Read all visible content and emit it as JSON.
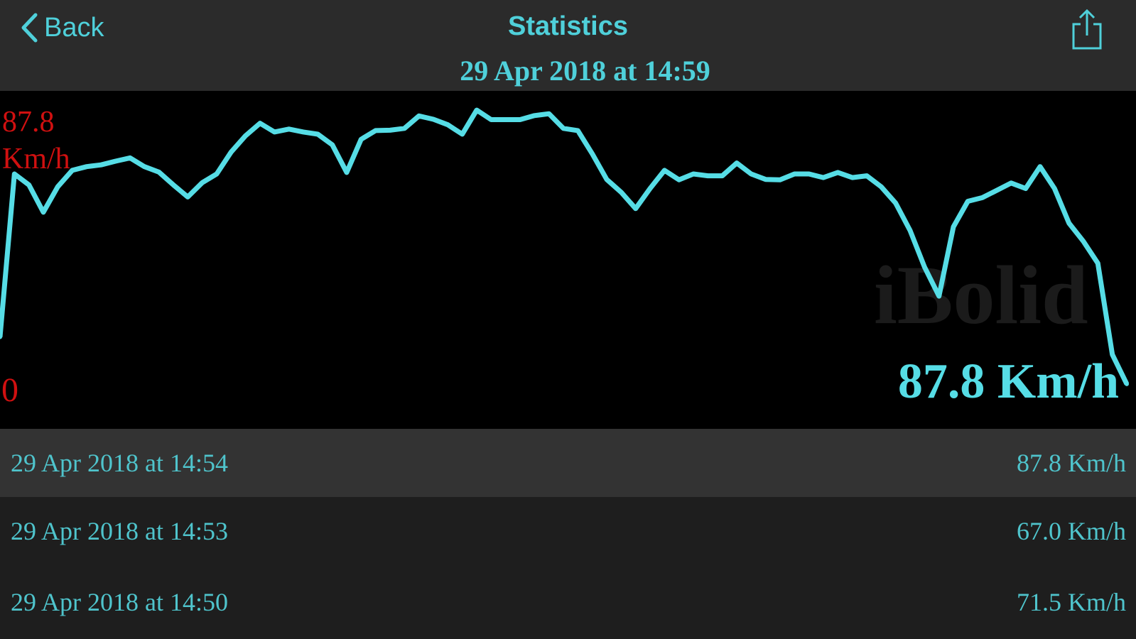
{
  "header": {
    "back_label": "Back",
    "title": "Statistics",
    "subtitle": "29 Apr 2018 at 14:59",
    "share_icon": "share-icon"
  },
  "colors": {
    "accent": "#4fd0da",
    "line": "#56dde6",
    "axis_label": "#d01010",
    "header_bg": "#2b2b2b",
    "selected_row_bg": "#333333",
    "row_bg": "#1e1e1e"
  },
  "chart_data": {
    "type": "line",
    "ylabel_max": "87.8",
    "ylabel_unit": "Km/h",
    "ylabel_min": "0",
    "ylim": [
      0,
      87.8
    ],
    "watermark": "iBolid",
    "current_value_label": "87.8 Km/h",
    "series": [
      {
        "values": [
          24.8,
          69.5,
          66.5,
          59,
          66,
          70.5,
          71.5,
          72,
          73,
          73.9,
          71.5,
          70,
          66.5,
          63.2,
          67.1,
          69.5,
          75.5,
          80,
          83.4,
          81,
          81.8,
          81,
          80.4,
          77.5,
          69.9,
          79,
          81.4,
          81.5,
          82,
          85.4,
          84.5,
          83,
          80.4,
          87,
          84.4,
          84.4,
          84.4,
          85.5,
          86,
          82,
          81.4,
          75,
          68,
          64.5,
          60,
          65.5,
          70.5,
          67.9,
          69.5,
          69,
          69,
          72.5,
          69.5,
          68,
          67.9,
          69.5,
          69.5,
          68.5,
          69.9,
          68.5,
          69,
          66,
          61.5,
          54,
          44,
          36,
          55,
          62,
          63,
          65,
          67,
          65.5,
          71.5,
          65.5,
          56,
          51,
          45,
          20,
          11.9
        ]
      }
    ]
  },
  "records": [
    {
      "date": "29 Apr 2018 at 14:54",
      "value": "87.8 Km/h",
      "selected": true
    },
    {
      "date": "29 Apr 2018 at 14:53",
      "value": "67.0 Km/h",
      "selected": false
    },
    {
      "date": "29 Apr 2018 at 14:50",
      "value": "71.5 Km/h",
      "selected": false
    }
  ]
}
